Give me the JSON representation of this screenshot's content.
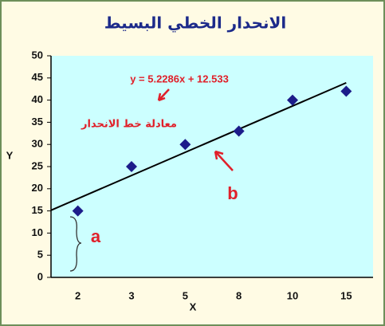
{
  "chart_data": {
    "type": "scatter",
    "title": "الانحدار الخطي البسيط",
    "x_label": "X",
    "y_label": "Y",
    "categories": [
      "2",
      "3",
      "5",
      "8",
      "10",
      "15"
    ],
    "series": [
      {
        "name": "Y",
        "color": "#1c1c8a",
        "values": [
          15,
          25,
          30,
          33,
          40,
          42
        ]
      }
    ],
    "ylim": [
      0,
      50
    ],
    "yticks": [
      0,
      5,
      10,
      15,
      20,
      25,
      30,
      35,
      40,
      45,
      50
    ],
    "trendline": {
      "slope": 5.2286,
      "intercept": 12.533,
      "label": "y = 5.2286x + 12.533",
      "color": "#000000"
    },
    "annotations": {
      "equation_name": "معادلة خط الانحدار",
      "intercept_marker": "a",
      "line_marker": "b",
      "color": "#e0202a"
    }
  }
}
